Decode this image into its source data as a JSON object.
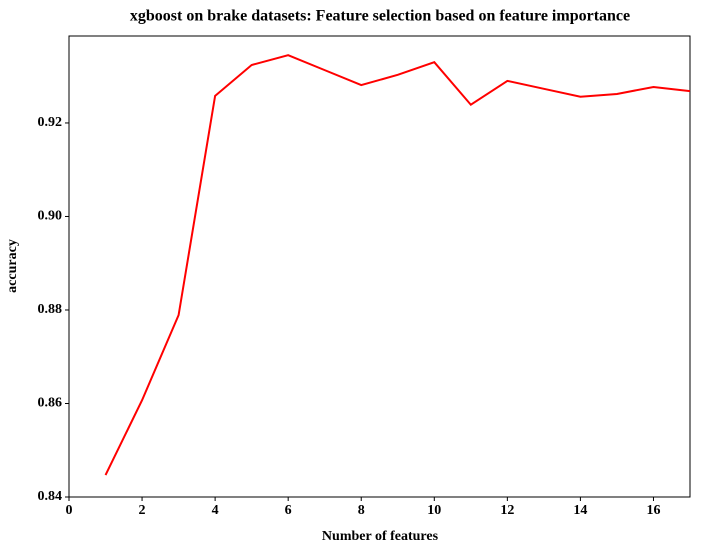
{
  "chart_data": {
    "type": "line",
    "title": "xgboost on brake datasets: Feature selection based on feature importance",
    "xlabel": "Number of features",
    "ylabel": "accuracy",
    "x": [
      1,
      2,
      3,
      4,
      5,
      6,
      7,
      8,
      9,
      10,
      11,
      12,
      13,
      14,
      15,
      16,
      17
    ],
    "values": [
      0.8447,
      0.8607,
      0.8789,
      0.9258,
      0.9324,
      0.9345,
      0.9313,
      0.9281,
      0.9303,
      0.933,
      0.9239,
      0.929,
      0.9273,
      0.9256,
      0.9262,
      0.9277,
      0.9268
    ],
    "color": "#ff0000",
    "xlim": [
      0,
      17
    ],
    "xticks": [
      0,
      2,
      4,
      6,
      8,
      10,
      12,
      14,
      16
    ],
    "ylim": [
      0.84,
      0.9386
    ],
    "yticks": [
      0.84,
      0.86,
      0.88,
      {
        "value": 0.9,
        "label": "0.90"
      },
      0.92
    ],
    "grid": false
  }
}
